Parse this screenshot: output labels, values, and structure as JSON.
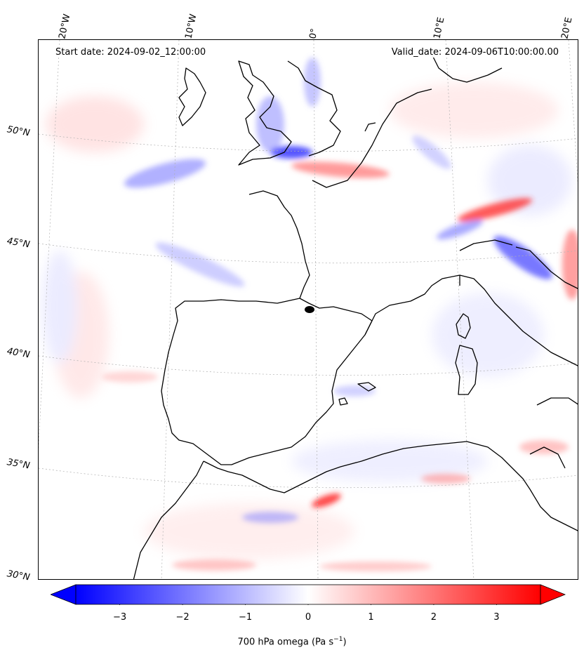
{
  "header": {
    "start_date": "Start date: 2024-09-02_12:00:00",
    "valid_date": "Valid_date: 2024-09-06T10:00:00.00"
  },
  "lon_labels": [
    "20°W",
    "10°W",
    "0°",
    "10°E",
    "20°E"
  ],
  "lat_labels": [
    "50°N",
    "45°N",
    "40°N",
    "35°N",
    "30°N"
  ],
  "colorbar": {
    "label": "700 hPa omega (Pa s",
    "label_sup": "−1",
    "label_end": ")",
    "ticks": [
      "−3",
      "−2",
      "−1",
      "0",
      "1",
      "2",
      "3"
    ],
    "min": -3.7,
    "max": 3.7,
    "min_color": "#0000ff",
    "mid_color": "#ffffff",
    "max_color": "#ff0000",
    "extend": "both"
  },
  "map": {
    "coastline_color": "#000000",
    "gridline_color": "#b0b0b0"
  }
}
